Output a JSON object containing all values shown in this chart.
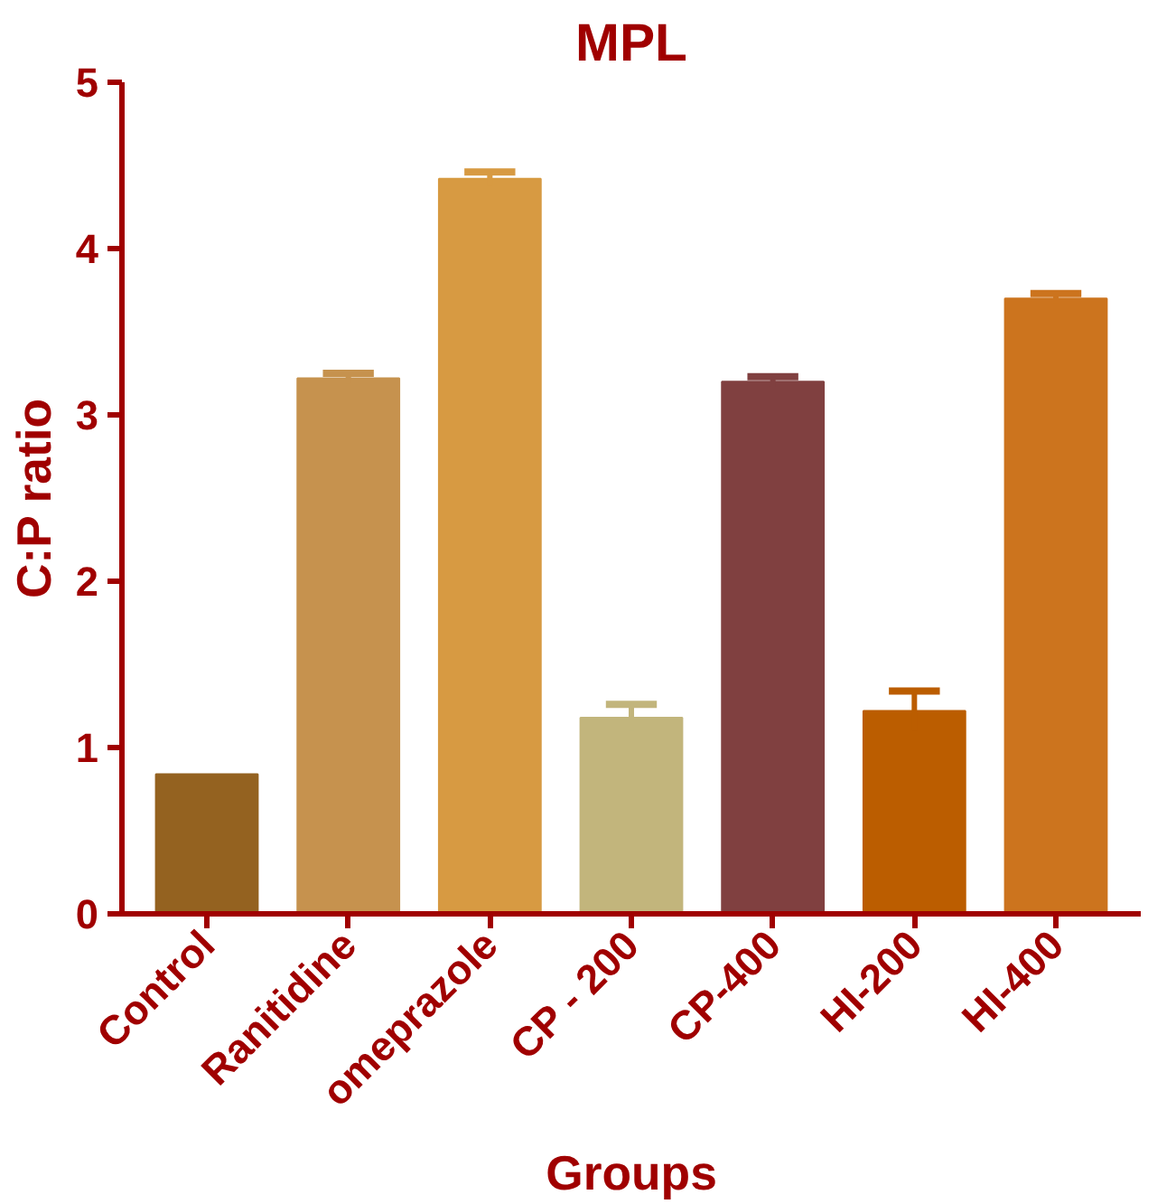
{
  "chart_data": {
    "type": "bar",
    "title": "MPL",
    "xlabel": "Groups",
    "ylabel": "C:P ratio",
    "categories": [
      "Control",
      "Ranitidine",
      "omeprazole",
      "CP - 200",
      "CP-400",
      "HI-200",
      "HI-400"
    ],
    "values": [
      0.84,
      3.22,
      4.42,
      1.18,
      3.2,
      1.22,
      3.7
    ],
    "errors": [
      null,
      0.03,
      0.04,
      0.08,
      0.03,
      0.12,
      0.03
    ],
    "colors": [
      "#946220",
      "#c6924e",
      "#d79a42",
      "#c2b57c",
      "#804040",
      "#bb5d00",
      "#cc741e"
    ],
    "ylim": [
      0,
      5
    ],
    "yticks": [
      0,
      1,
      2,
      3,
      4,
      5
    ],
    "grid": false
  }
}
